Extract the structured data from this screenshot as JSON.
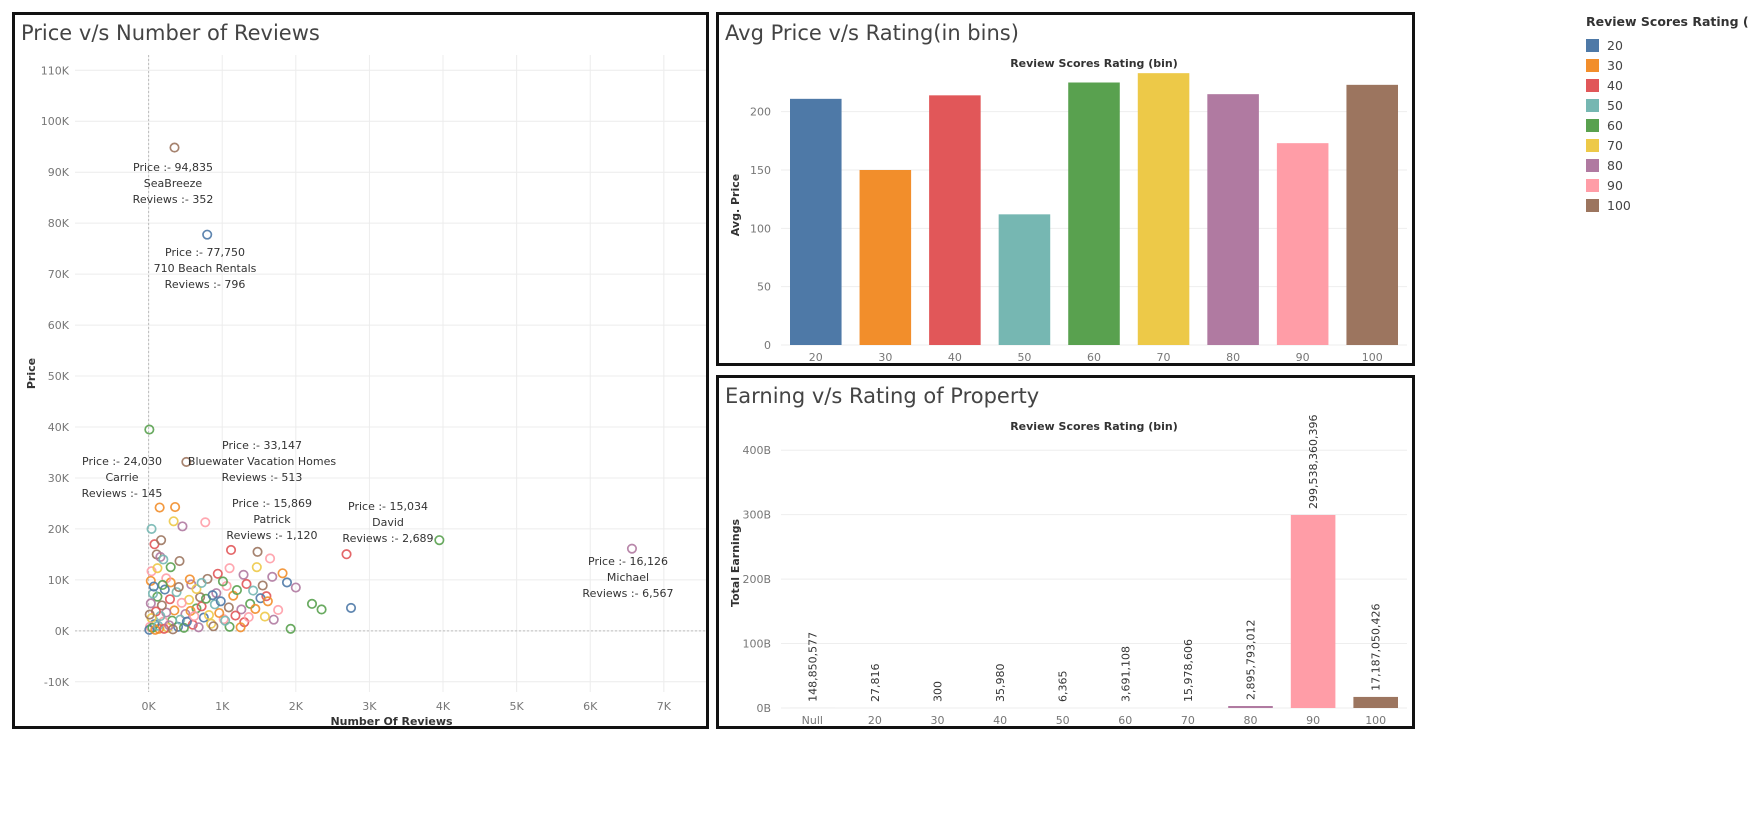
{
  "scatter": {
    "title": "Price v/s Number of Reviews",
    "xlabel": "Number Of Reviews",
    "ylabel": "Price"
  },
  "avg_bar": {
    "title": "Avg Price v/s Rating(in bins)",
    "header": "Review Scores Rating (bin)",
    "ylabel": "Avg. Price"
  },
  "earn_bar": {
    "title": "Earning v/s Rating of Property",
    "header": "Review Scores Rating (bin)",
    "ylabel": "Total Earnings"
  },
  "legend": {
    "title": "Review Scores Rating (bin)",
    "items": [
      {
        "label": "20",
        "color": "#4e79a7"
      },
      {
        "label": "30",
        "color": "#f28e2b"
      },
      {
        "label": "40",
        "color": "#e15759"
      },
      {
        "label": "50",
        "color": "#76b7b2"
      },
      {
        "label": "60",
        "color": "#59a14f"
      },
      {
        "label": "70",
        "color": "#edc948"
      },
      {
        "label": "80",
        "color": "#b07aa1"
      },
      {
        "label": "90",
        "color": "#ff9da7"
      },
      {
        "label": "100",
        "color": "#9c755f"
      }
    ]
  },
  "chart_data": [
    {
      "type": "scatter",
      "title": "Price v/s Number of Reviews",
      "xlabel": "Number Of Reviews",
      "ylabel": "Price",
      "xlim": [
        -1000,
        7600
      ],
      "ylim": [
        -12000,
        113000
      ],
      "xticks": [
        0,
        1000,
        2000,
        3000,
        4000,
        5000,
        6000,
        7000
      ],
      "xtick_labels": [
        "0K",
        "1K",
        "2K",
        "3K",
        "4K",
        "5K",
        "6K",
        "7K"
      ],
      "yticks": [
        -10000,
        0,
        10000,
        20000,
        30000,
        40000,
        50000,
        60000,
        70000,
        80000,
        90000,
        100000,
        110000
      ],
      "ytick_labels": [
        "-10K",
        "0K",
        "10K",
        "20K",
        "30K",
        "40K",
        "50K",
        "60K",
        "70K",
        "80K",
        "90K",
        "100K",
        "110K"
      ],
      "grid": true,
      "marker": "hollow-circle",
      "points": [
        {
          "x": 352,
          "y": 94835,
          "bin": "100"
        },
        {
          "x": 796,
          "y": 77750,
          "bin": "20"
        },
        {
          "x": 10,
          "y": 39500,
          "bin": "60"
        },
        {
          "x": 513,
          "y": 33147,
          "bin": "100"
        },
        {
          "x": 1120,
          "y": 15869,
          "bin": "40"
        },
        {
          "x": 2689,
          "y": 15034,
          "bin": "40"
        },
        {
          "x": 3950,
          "y": 17800,
          "bin": "60"
        },
        {
          "x": 6567,
          "y": 16126,
          "bin": "80"
        },
        {
          "x": 2750,
          "y": 4500,
          "bin": "20"
        },
        {
          "x": 2350,
          "y": 4200,
          "bin": "60"
        },
        {
          "x": 2220,
          "y": 5300,
          "bin": "60"
        },
        {
          "x": 1930,
          "y": 400,
          "bin": "60"
        },
        {
          "x": 2000,
          "y": 8500,
          "bin": "80"
        },
        {
          "x": 1880,
          "y": 9500,
          "bin": "20"
        },
        {
          "x": 1820,
          "y": 11300,
          "bin": "30"
        },
        {
          "x": 1650,
          "y": 14200,
          "bin": "90"
        },
        {
          "x": 1480,
          "y": 15500,
          "bin": "100"
        },
        {
          "x": 1470,
          "y": 12500,
          "bin": "70"
        },
        {
          "x": 1290,
          "y": 11000,
          "bin": "80"
        },
        {
          "x": 1100,
          "y": 12300,
          "bin": "90"
        },
        {
          "x": 770,
          "y": 21300,
          "bin": "90"
        },
        {
          "x": 460,
          "y": 20500,
          "bin": "80"
        },
        {
          "x": 360,
          "y": 24300,
          "bin": "30"
        },
        {
          "x": 150,
          "y": 24200,
          "bin": "30"
        },
        {
          "x": 40,
          "y": 20000,
          "bin": "50"
        },
        {
          "x": 340,
          "y": 21500,
          "bin": "70"
        },
        {
          "x": 80,
          "y": 17000,
          "bin": "40"
        },
        {
          "x": 170,
          "y": 17800,
          "bin": "100"
        },
        {
          "x": 110,
          "y": 15000,
          "bin": "100"
        },
        {
          "x": 160,
          "y": 14500,
          "bin": "80"
        },
        {
          "x": 200,
          "y": 14000,
          "bin": "50"
        },
        {
          "x": 420,
          "y": 13700,
          "bin": "100"
        },
        {
          "x": 40,
          "y": 11700,
          "bin": "90"
        },
        {
          "x": 30,
          "y": 9800,
          "bin": "30"
        },
        {
          "x": 300,
          "y": 9500,
          "bin": "30"
        },
        {
          "x": 800,
          "y": 10200,
          "bin": "100"
        },
        {
          "x": 580,
          "y": 9100,
          "bin": "80"
        },
        {
          "x": 1600,
          "y": 6800,
          "bin": "40"
        },
        {
          "x": 1520,
          "y": 6400,
          "bin": "20"
        },
        {
          "x": 1380,
          "y": 5300,
          "bin": "60"
        },
        {
          "x": 1260,
          "y": 4200,
          "bin": "80"
        },
        {
          "x": 1450,
          "y": 4300,
          "bin": "30"
        },
        {
          "x": 1700,
          "y": 2200,
          "bin": "80"
        },
        {
          "x": 1580,
          "y": 2800,
          "bin": "70"
        },
        {
          "x": 1300,
          "y": 1700,
          "bin": "40"
        },
        {
          "x": 1250,
          "y": 700,
          "bin": "30"
        },
        {
          "x": 1100,
          "y": 800,
          "bin": "60"
        },
        {
          "x": 1020,
          "y": 2300,
          "bin": "90"
        },
        {
          "x": 960,
          "y": 3500,
          "bin": "30"
        },
        {
          "x": 900,
          "y": 5200,
          "bin": "50"
        },
        {
          "x": 850,
          "y": 1400,
          "bin": "70"
        },
        {
          "x": 750,
          "y": 2600,
          "bin": "20"
        },
        {
          "x": 700,
          "y": 6600,
          "bin": "100"
        },
        {
          "x": 650,
          "y": 4400,
          "bin": "60"
        },
        {
          "x": 600,
          "y": 1200,
          "bin": "40"
        },
        {
          "x": 550,
          "y": 6100,
          "bin": "70"
        },
        {
          "x": 500,
          "y": 3300,
          "bin": "80"
        },
        {
          "x": 450,
          "y": 5500,
          "bin": "90"
        },
        {
          "x": 400,
          "y": 800,
          "bin": "20"
        },
        {
          "x": 380,
          "y": 7600,
          "bin": "50"
        },
        {
          "x": 350,
          "y": 4000,
          "bin": "30"
        },
        {
          "x": 320,
          "y": 2000,
          "bin": "60"
        },
        {
          "x": 290,
          "y": 6200,
          "bin": "40"
        },
        {
          "x": 260,
          "y": 600,
          "bin": "70"
        },
        {
          "x": 240,
          "y": 3600,
          "bin": "80"
        },
        {
          "x": 220,
          "y": 8100,
          "bin": "20"
        },
        {
          "x": 200,
          "y": 1800,
          "bin": "90"
        },
        {
          "x": 180,
          "y": 5000,
          "bin": "100"
        },
        {
          "x": 160,
          "y": 2900,
          "bin": "50"
        },
        {
          "x": 140,
          "y": 400,
          "bin": "30"
        },
        {
          "x": 120,
          "y": 6700,
          "bin": "60"
        },
        {
          "x": 100,
          "y": 3800,
          "bin": "40"
        },
        {
          "x": 80,
          "y": 1300,
          "bin": "20"
        },
        {
          "x": 60,
          "y": 7300,
          "bin": "50"
        },
        {
          "x": 40,
          "y": 2500,
          "bin": "70"
        },
        {
          "x": 30,
          "y": 5400,
          "bin": "80"
        },
        {
          "x": 20,
          "y": 800,
          "bin": "90"
        },
        {
          "x": 15,
          "y": 3200,
          "bin": "100"
        },
        {
          "x": 10,
          "y": 200,
          "bin": "20"
        },
        {
          "x": 50,
          "y": 600,
          "bin": "60"
        },
        {
          "x": 90,
          "y": 200,
          "bin": "30"
        },
        {
          "x": 130,
          "y": 1000,
          "bin": "50"
        },
        {
          "x": 210,
          "y": 400,
          "bin": "40"
        },
        {
          "x": 280,
          "y": 1100,
          "bin": "80"
        },
        {
          "x": 330,
          "y": 300,
          "bin": "100"
        },
        {
          "x": 430,
          "y": 2200,
          "bin": "50"
        },
        {
          "x": 480,
          "y": 600,
          "bin": "60"
        },
        {
          "x": 520,
          "y": 1800,
          "bin": "20"
        },
        {
          "x": 570,
          "y": 3900,
          "bin": "30"
        },
        {
          "x": 620,
          "y": 2900,
          "bin": "90"
        },
        {
          "x": 680,
          "y": 700,
          "bin": "80"
        },
        {
          "x": 720,
          "y": 4800,
          "bin": "40"
        },
        {
          "x": 780,
          "y": 6300,
          "bin": "60"
        },
        {
          "x": 820,
          "y": 3100,
          "bin": "70"
        },
        {
          "x": 880,
          "y": 900,
          "bin": "100"
        },
        {
          "x": 920,
          "y": 7400,
          "bin": "80"
        },
        {
          "x": 980,
          "y": 5800,
          "bin": "20"
        },
        {
          "x": 1040,
          "y": 2000,
          "bin": "50"
        },
        {
          "x": 1060,
          "y": 8800,
          "bin": "90"
        },
        {
          "x": 1150,
          "y": 6900,
          "bin": "30"
        },
        {
          "x": 1180,
          "y": 3000,
          "bin": "40"
        },
        {
          "x": 1200,
          "y": 8000,
          "bin": "60"
        },
        {
          "x": 1330,
          "y": 9200,
          "bin": "40"
        },
        {
          "x": 1360,
          "y": 2700,
          "bin": "90"
        },
        {
          "x": 1420,
          "y": 7900,
          "bin": "50"
        },
        {
          "x": 1550,
          "y": 8900,
          "bin": "100"
        },
        {
          "x": 1620,
          "y": 5800,
          "bin": "30"
        },
        {
          "x": 1680,
          "y": 10600,
          "bin": "80"
        },
        {
          "x": 1760,
          "y": 4100,
          "bin": "90"
        },
        {
          "x": 650,
          "y": 8200,
          "bin": "70"
        },
        {
          "x": 560,
          "y": 10100,
          "bin": "30"
        },
        {
          "x": 720,
          "y": 9400,
          "bin": "50"
        },
        {
          "x": 240,
          "y": 10300,
          "bin": "90"
        },
        {
          "x": 120,
          "y": 12300,
          "bin": "70"
        },
        {
          "x": 300,
          "y": 12500,
          "bin": "60"
        },
        {
          "x": 940,
          "y": 11200,
          "bin": "40"
        },
        {
          "x": 1010,
          "y": 9700,
          "bin": "60"
        },
        {
          "x": 1090,
          "y": 4600,
          "bin": "100"
        },
        {
          "x": 870,
          "y": 7000,
          "bin": "20"
        },
        {
          "x": 410,
          "y": 8600,
          "bin": "100"
        },
        {
          "x": 190,
          "y": 9000,
          "bin": "60"
        },
        {
          "x": 70,
          "y": 8700,
          "bin": "20"
        }
      ],
      "annotations": [
        {
          "text": [
            "Price :- 94,835",
            "SeaBreeze",
            "Reviews :- 352"
          ]
        },
        {
          "text": [
            "Price :- 77,750",
            "710 Beach Rentals",
            "Reviews :- 796"
          ]
        },
        {
          "text": [
            "Price :- 33,147",
            "Bluewater Vacation Homes",
            "Reviews :- 513"
          ]
        },
        {
          "text": [
            "Price :- 24,030",
            "Carrie",
            "Reviews :- 145"
          ]
        },
        {
          "text": [
            "Price :- 15,869",
            "Patrick",
            "Reviews :- 1,120"
          ]
        },
        {
          "text": [
            "Price :- 15,034",
            "David",
            "Reviews :- 2,689"
          ]
        },
        {
          "text": [
            "Price :- 16,126",
            "Michael",
            "Reviews :- 6,567"
          ]
        }
      ]
    },
    {
      "type": "bar",
      "title": "Avg Price v/s Rating(in bins)",
      "header": "Review Scores Rating (bin)",
      "ylabel": "Avg. Price",
      "categories": [
        "20",
        "30",
        "40",
        "50",
        "60",
        "70",
        "80",
        "90",
        "100"
      ],
      "values": [
        211,
        150,
        214,
        112,
        225,
        233,
        215,
        173,
        223
      ],
      "ylim": [
        0,
        240
      ],
      "yticks": [
        0,
        50,
        100,
        150,
        200
      ]
    },
    {
      "type": "bar",
      "title": "Earning v/s Rating of Property",
      "header": "Review Scores Rating (bin)",
      "ylabel": "Total Earnings",
      "categories": [
        "Null",
        "20",
        "30",
        "40",
        "50",
        "60",
        "70",
        "80",
        "90",
        "100"
      ],
      "values": [
        148850577,
        27816,
        300,
        35980,
        6365,
        3691108,
        15978606,
        2895793012,
        299538360396,
        17187050426
      ],
      "value_labels": [
        "148,850,577",
        "27,816",
        "300",
        "35,980",
        "6,365",
        "3,691,108",
        "15,978,606",
        "2,895,793,012",
        "299,538,360,396",
        "17,187,050,426"
      ],
      "ylim": [
        0,
        450000000000
      ],
      "yticks": [
        0,
        100000000000,
        200000000000,
        300000000000,
        400000000000
      ],
      "ytick_labels": [
        "0B",
        "100B",
        "200B",
        "300B",
        "400B"
      ]
    }
  ]
}
